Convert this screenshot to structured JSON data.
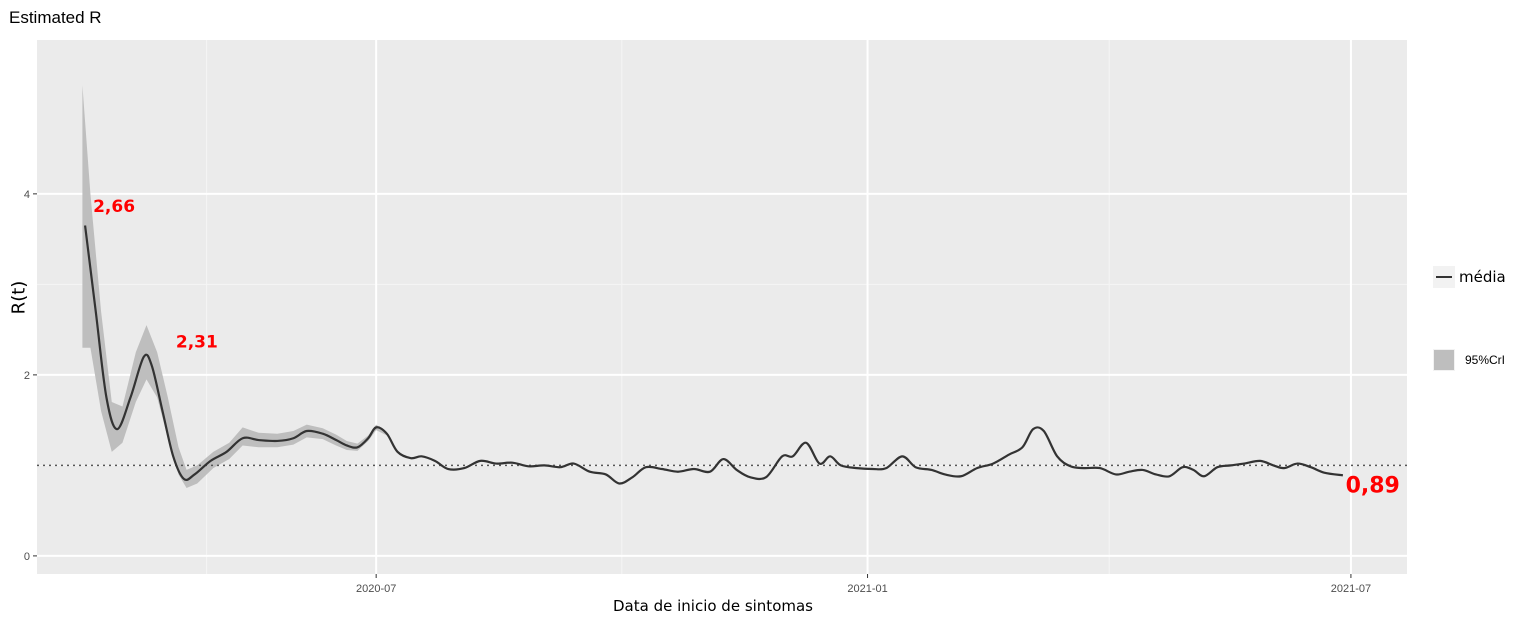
{
  "chart_data": {
    "type": "line",
    "title": "Estimated R",
    "xlabel": "Data de inicio de sintomas",
    "ylabel": "R(t)",
    "x_ticks": [
      "2020-07",
      "2021-01",
      "2021-07"
    ],
    "y_ticks": [
      "0",
      "2",
      "4"
    ],
    "ylim": [
      -0.2,
      5.7
    ],
    "xlim": [
      "2020-02-25",
      "2021-07-22"
    ],
    "reference_line": {
      "y": 1,
      "style": "dotted"
    },
    "grid": true,
    "legend": {
      "placement": "right",
      "entries": [
        "média",
        "95%CrI"
      ]
    },
    "annotations": [
      {
        "text": "2,66",
        "x": "2020-03-17",
        "y": 3.8,
        "color": "#ff0000"
      },
      {
        "text": "2,31",
        "x": "2020-04-17",
        "y": 2.3,
        "color": "#ff0000"
      },
      {
        "text": "0,89",
        "x": "2021-06-29",
        "y": 0.7,
        "color": "#ff0000"
      }
    ],
    "series": [
      {
        "name": "média",
        "type": "line",
        "color": "#333333",
        "points": [
          [
            "2020-03-14",
            3.65
          ],
          [
            "2020-03-18",
            2.7
          ],
          [
            "2020-03-22",
            1.75
          ],
          [
            "2020-03-26",
            1.4
          ],
          [
            "2020-03-31",
            1.75
          ],
          [
            "2020-04-05",
            2.2
          ],
          [
            "2020-04-08",
            2.1
          ],
          [
            "2020-04-12",
            1.6
          ],
          [
            "2020-04-16",
            1.1
          ],
          [
            "2020-04-20",
            0.85
          ],
          [
            "2020-04-24",
            0.9
          ],
          [
            "2020-04-30",
            1.05
          ],
          [
            "2020-05-06",
            1.15
          ],
          [
            "2020-05-12",
            1.3
          ],
          [
            "2020-05-18",
            1.28
          ],
          [
            "2020-05-25",
            1.27
          ],
          [
            "2020-05-31",
            1.3
          ],
          [
            "2020-06-05",
            1.38
          ],
          [
            "2020-06-11",
            1.35
          ],
          [
            "2020-06-16",
            1.28
          ],
          [
            "2020-06-20",
            1.22
          ],
          [
            "2020-06-24",
            1.2
          ],
          [
            "2020-06-28",
            1.3
          ],
          [
            "2020-07-01",
            1.42
          ],
          [
            "2020-07-05",
            1.35
          ],
          [
            "2020-07-09",
            1.15
          ],
          [
            "2020-07-14",
            1.08
          ],
          [
            "2020-07-18",
            1.1
          ],
          [
            "2020-07-23",
            1.05
          ],
          [
            "2020-07-28",
            0.96
          ],
          [
            "2020-08-03",
            0.97
          ],
          [
            "2020-08-09",
            1.05
          ],
          [
            "2020-08-15",
            1.02
          ],
          [
            "2020-08-21",
            1.03
          ],
          [
            "2020-08-27",
            0.99
          ],
          [
            "2020-09-02",
            1.0
          ],
          [
            "2020-09-08",
            0.98
          ],
          [
            "2020-09-13",
            1.02
          ],
          [
            "2020-09-19",
            0.93
          ],
          [
            "2020-09-25",
            0.9
          ],
          [
            "2020-09-30",
            0.8
          ],
          [
            "2020-10-05",
            0.87
          ],
          [
            "2020-10-10",
            0.98
          ],
          [
            "2020-10-16",
            0.96
          ],
          [
            "2020-10-22",
            0.93
          ],
          [
            "2020-10-28",
            0.96
          ],
          [
            "2020-11-03",
            0.93
          ],
          [
            "2020-11-08",
            1.07
          ],
          [
            "2020-11-13",
            0.95
          ],
          [
            "2020-11-18",
            0.87
          ],
          [
            "2020-11-24",
            0.87
          ],
          [
            "2020-11-30",
            1.1
          ],
          [
            "2020-12-04",
            1.1
          ],
          [
            "2020-12-09",
            1.25
          ],
          [
            "2020-12-14",
            1.02
          ],
          [
            "2020-12-18",
            1.1
          ],
          [
            "2020-12-22",
            1.0
          ],
          [
            "2020-12-28",
            0.97
          ],
          [
            "2021-01-03",
            0.96
          ],
          [
            "2021-01-08",
            0.97
          ],
          [
            "2021-01-14",
            1.1
          ],
          [
            "2021-01-19",
            0.98
          ],
          [
            "2021-01-25",
            0.95
          ],
          [
            "2021-01-30",
            0.9
          ],
          [
            "2021-02-05",
            0.88
          ],
          [
            "2021-02-11",
            0.97
          ],
          [
            "2021-02-17",
            1.02
          ],
          [
            "2021-02-23",
            1.12
          ],
          [
            "2021-02-28",
            1.2
          ],
          [
            "2021-03-04",
            1.4
          ],
          [
            "2021-03-08",
            1.38
          ],
          [
            "2021-03-13",
            1.1
          ],
          [
            "2021-03-18",
            0.99
          ],
          [
            "2021-03-23",
            0.97
          ],
          [
            "2021-03-29",
            0.97
          ],
          [
            "2021-04-04",
            0.9
          ],
          [
            "2021-04-09",
            0.93
          ],
          [
            "2021-04-14",
            0.95
          ],
          [
            "2021-04-19",
            0.9
          ],
          [
            "2021-04-24",
            0.88
          ],
          [
            "2021-04-29",
            0.98
          ],
          [
            "2021-05-03",
            0.95
          ],
          [
            "2021-05-07",
            0.88
          ],
          [
            "2021-05-12",
            0.98
          ],
          [
            "2021-05-17",
            1.0
          ],
          [
            "2021-05-22",
            1.02
          ],
          [
            "2021-05-28",
            1.05
          ],
          [
            "2021-06-02",
            1.0
          ],
          [
            "2021-06-06",
            0.97
          ],
          [
            "2021-06-11",
            1.02
          ],
          [
            "2021-06-16",
            0.98
          ],
          [
            "2021-06-21",
            0.92
          ],
          [
            "2021-06-28",
            0.89
          ]
        ]
      },
      {
        "name": "95%CrI",
        "type": "band",
        "color": "#bebebe",
        "points": [
          [
            "2020-03-13",
            2.3,
            5.2
          ],
          [
            "2020-03-16",
            2.3,
            4.0
          ],
          [
            "2020-03-20",
            1.6,
            2.7
          ],
          [
            "2020-03-24",
            1.15,
            1.7
          ],
          [
            "2020-03-28",
            1.25,
            1.65
          ],
          [
            "2020-04-02",
            1.7,
            2.25
          ],
          [
            "2020-04-06",
            1.95,
            2.55
          ],
          [
            "2020-04-10",
            1.75,
            2.25
          ],
          [
            "2020-04-14",
            1.3,
            1.75
          ],
          [
            "2020-04-18",
            0.9,
            1.2
          ],
          [
            "2020-04-21",
            0.75,
            0.95
          ],
          [
            "2020-04-25",
            0.8,
            1.0
          ],
          [
            "2020-05-01",
            0.97,
            1.15
          ],
          [
            "2020-05-07",
            1.07,
            1.25
          ],
          [
            "2020-05-12",
            1.22,
            1.42
          ],
          [
            "2020-05-18",
            1.2,
            1.36
          ],
          [
            "2020-05-25",
            1.2,
            1.35
          ],
          [
            "2020-05-31",
            1.23,
            1.38
          ],
          [
            "2020-06-05",
            1.31,
            1.45
          ],
          [
            "2020-06-11",
            1.29,
            1.41
          ],
          [
            "2020-06-16",
            1.22,
            1.34
          ],
          [
            "2020-06-20",
            1.17,
            1.27
          ],
          [
            "2020-06-24",
            1.16,
            1.24
          ],
          [
            "2020-06-28",
            1.27,
            1.33
          ],
          [
            "2020-07-01",
            1.39,
            1.45
          ],
          [
            "2020-07-05",
            1.33,
            1.37
          ]
        ]
      }
    ]
  }
}
